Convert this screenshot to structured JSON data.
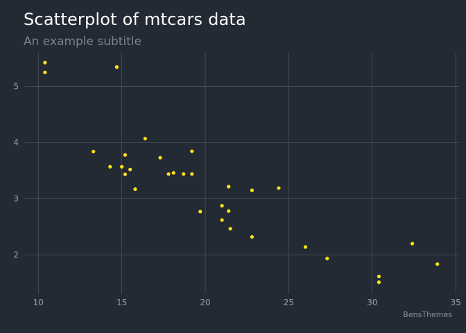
{
  "chart_data": {
    "type": "scatter",
    "title": "Scatterplot of mtcars data",
    "subtitle": "An example subtitle",
    "caption": "BensThemes",
    "xlabel": "",
    "ylabel": "",
    "xlim": [
      9.2,
      35.2
    ],
    "ylim": [
      1.3,
      5.6
    ],
    "x_ticks": [
      10,
      15,
      20,
      25,
      30,
      35
    ],
    "y_ticks": [
      2,
      3,
      4,
      5
    ],
    "grid": true,
    "point_color": "#ffe21a",
    "background_color": "#242a33",
    "points": [
      {
        "x": 21.0,
        "y": 2.62
      },
      {
        "x": 21.0,
        "y": 2.875
      },
      {
        "x": 22.8,
        "y": 2.32
      },
      {
        "x": 21.4,
        "y": 3.215
      },
      {
        "x": 18.7,
        "y": 3.44
      },
      {
        "x": 18.1,
        "y": 3.46
      },
      {
        "x": 14.3,
        "y": 3.57
      },
      {
        "x": 24.4,
        "y": 3.19
      },
      {
        "x": 22.8,
        "y": 3.15
      },
      {
        "x": 19.2,
        "y": 3.44
      },
      {
        "x": 17.8,
        "y": 3.44
      },
      {
        "x": 16.4,
        "y": 4.07
      },
      {
        "x": 17.3,
        "y": 3.73
      },
      {
        "x": 15.2,
        "y": 3.78
      },
      {
        "x": 10.4,
        "y": 5.25
      },
      {
        "x": 10.4,
        "y": 5.424
      },
      {
        "x": 14.7,
        "y": 5.345
      },
      {
        "x": 32.4,
        "y": 2.2
      },
      {
        "x": 30.4,
        "y": 1.615
      },
      {
        "x": 33.9,
        "y": 1.835
      },
      {
        "x": 21.5,
        "y": 2.465
      },
      {
        "x": 15.5,
        "y": 3.52
      },
      {
        "x": 15.2,
        "y": 3.435
      },
      {
        "x": 13.3,
        "y": 3.84
      },
      {
        "x": 19.2,
        "y": 3.845
      },
      {
        "x": 27.3,
        "y": 1.935
      },
      {
        "x": 26.0,
        "y": 2.14
      },
      {
        "x": 30.4,
        "y": 1.513
      },
      {
        "x": 15.8,
        "y": 3.17
      },
      {
        "x": 19.7,
        "y": 2.77
      },
      {
        "x": 15.0,
        "y": 3.57
      },
      {
        "x": 21.4,
        "y": 2.78
      }
    ]
  }
}
